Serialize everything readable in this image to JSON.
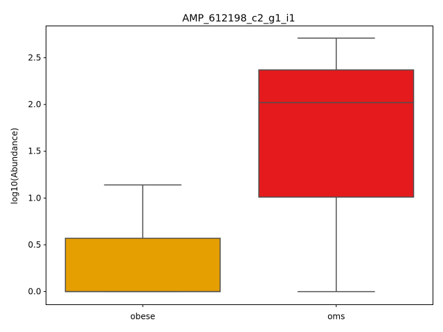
{
  "chart_data": {
    "type": "boxplot",
    "title": "AMP_612198_c2_g1_i1",
    "xlabel": "",
    "ylabel": "log10(Abundance)",
    "ylim": [
      -0.14,
      2.84
    ],
    "yticks": [
      "0.0",
      "0.5",
      "1.0",
      "1.5",
      "2.0",
      "2.5"
    ],
    "grid": false,
    "categories": [
      "obese",
      "oms"
    ],
    "boxes": [
      {
        "category": "obese",
        "color": "#e69f00",
        "whisker_low": 0.0,
        "q1": 0.0,
        "median": 0.0,
        "q3": 0.57,
        "whisker_high": 1.14
      },
      {
        "category": "oms",
        "color": "#e41a1c",
        "whisker_low": 0.0,
        "q1": 1.01,
        "median": 2.02,
        "q3": 2.37,
        "whisker_high": 2.71
      }
    ]
  }
}
